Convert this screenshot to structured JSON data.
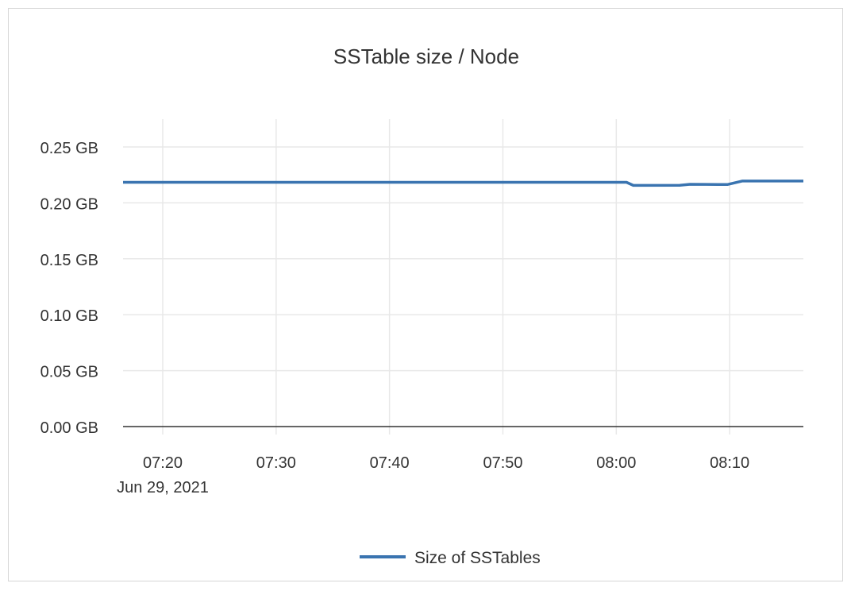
{
  "chart_data": {
    "type": "line",
    "title": "SSTable size / Node",
    "xlabel": "",
    "ylabel": "",
    "x_range": [
      "07:16:30",
      "08:16:30"
    ],
    "x_ticks": [
      "07:20",
      "07:30",
      "07:40",
      "07:50",
      "08:00",
      "08:10"
    ],
    "x_date_label": "Jun 29, 2021",
    "ylim": [
      0,
      0.25
    ],
    "y_ticks": [
      "0.00 GB",
      "0.05 GB",
      "0.10 GB",
      "0.15 GB",
      "0.20 GB",
      "0.25 GB"
    ],
    "y_unit": "GB",
    "grid": true,
    "legend_position": "bottom",
    "series": [
      {
        "name": "Size of SSTables",
        "color": "#3a74b0",
        "x": [
          "07:16:30",
          "08:00:54",
          "08:01:30",
          "08:05:36",
          "08:06:30",
          "08:09:00",
          "08:09:48",
          "08:11:06",
          "08:16:30"
        ],
        "values": [
          0.2184,
          0.2184,
          0.2156,
          0.2158,
          0.2166,
          0.2165,
          0.2164,
          0.2195,
          0.2195
        ]
      }
    ]
  }
}
